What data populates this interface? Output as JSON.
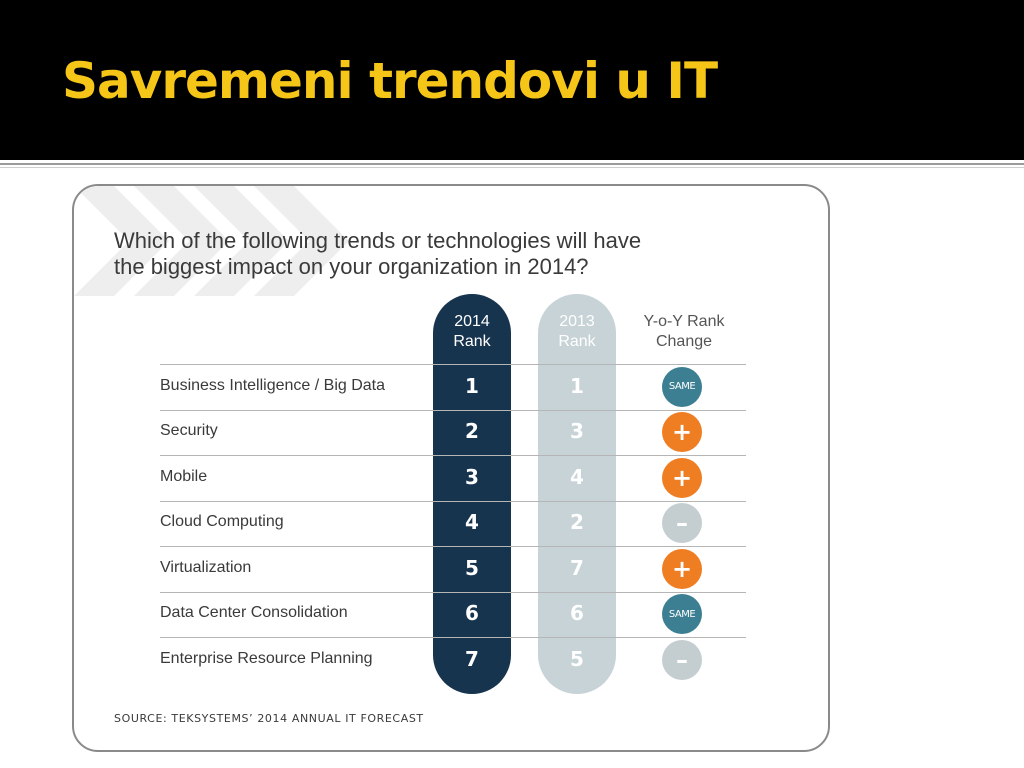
{
  "slide": {
    "title": "Savremeni trendovi u IT"
  },
  "card": {
    "question_line1": "Which of the following trends or technologies will have",
    "question_line2": "the biggest impact on your organization in 2014?",
    "source": "SOURCE: TEKSYSTEMS’ 2014 ANNUAL IT FORECAST"
  },
  "table": {
    "headers": {
      "rank_2014": [
        "2014",
        "Rank"
      ],
      "rank_2013": [
        "2013",
        "Rank"
      ],
      "yoy": [
        "Y-o-Y Rank",
        "Change"
      ]
    },
    "rows": [
      {
        "label": "Business Intelligence / Big Data",
        "rank_2014": "1",
        "rank_2013": "1",
        "change": "same",
        "change_text": "SAME"
      },
      {
        "label": "Security",
        "rank_2014": "2",
        "rank_2013": "3",
        "change": "up",
        "change_text": "+"
      },
      {
        "label": "Mobile",
        "rank_2014": "3",
        "rank_2013": "4",
        "change": "up",
        "change_text": "+"
      },
      {
        "label": "Cloud Computing",
        "rank_2014": "4",
        "rank_2013": "2",
        "change": "down",
        "change_text": "–"
      },
      {
        "label": "Virtualization",
        "rank_2014": "5",
        "rank_2013": "7",
        "change": "up",
        "change_text": "+"
      },
      {
        "label": "Data Center Consolidation",
        "rank_2014": "6",
        "rank_2013": "6",
        "change": "same",
        "change_text": "SAME"
      },
      {
        "label": "Enterprise Resource Planning",
        "rank_2014": "7",
        "rank_2013": "5",
        "change": "down",
        "change_text": "–"
      }
    ]
  },
  "colors": {
    "title": "#f5c518",
    "rank_2014_bg": "#17344f",
    "rank_2013_bg": "#c7d3d6",
    "same_badge": "#3d7f92",
    "up_badge": "#ef7d22",
    "down_badge": "#c4ced1"
  }
}
